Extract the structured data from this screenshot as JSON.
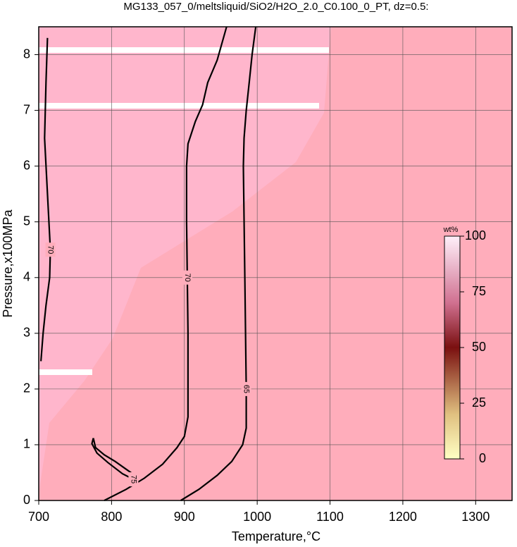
{
  "chart_data": {
    "type": "contour",
    "title": "MG133_057_0/meltsliquid/SiO2/H2O_2.0_C0.100_0_PT, dz=0.5:",
    "xlabel": "Temperature,°C",
    "ylabel": "Pressure,x100MPa",
    "xlim": [
      700,
      1350
    ],
    "ylim": [
      0,
      8.5
    ],
    "xticks": [
      700,
      800,
      900,
      1000,
      1100,
      1200,
      1300
    ],
    "yticks": [
      0,
      1,
      2,
      3,
      4,
      5,
      6,
      7,
      8
    ],
    "grid": true,
    "series": [
      {
        "name": "70",
        "color": "#000000",
        "x": [
          958,
          945,
          932,
          925,
          915,
          905,
          903,
          903,
          904,
          905,
          905,
          900,
          890,
          870,
          845,
          820,
          790
        ],
        "y": [
          8.5,
          7.9,
          7.5,
          7.1,
          6.8,
          6.4,
          6.0,
          5.0,
          4.0,
          3.0,
          1.5,
          1.15,
          0.95,
          0.65,
          0.4,
          0.2,
          0.0
        ]
      },
      {
        "name": "65",
        "color": "#000000",
        "x": [
          998,
          993,
          989,
          985,
          982,
          981,
          983,
          985,
          985,
          980,
          965,
          945,
          920,
          895
        ],
        "y": [
          8.5,
          8.0,
          7.5,
          7.0,
          6.5,
          6.0,
          4.0,
          2.0,
          1.3,
          1.0,
          0.7,
          0.45,
          0.2,
          0.0
        ]
      },
      {
        "name": "75",
        "color": "#000000",
        "x": [
          775,
          778,
          790,
          805,
          820,
          832,
          830,
          815,
          795,
          780,
          773,
          775
        ],
        "y": [
          1.12,
          0.95,
          0.82,
          0.7,
          0.56,
          0.45,
          0.38,
          0.48,
          0.68,
          0.85,
          1.02,
          1.12
        ]
      },
      {
        "name": "70",
        "color": "#000000",
        "x": [
          712,
          710,
          708,
          712,
          716,
          715,
          710,
          706,
          703
        ],
        "y": [
          8.3,
          7.5,
          6.5,
          5.5,
          4.5,
          4.0,
          3.5,
          3.0,
          2.5
        ]
      }
    ],
    "colorbar": {
      "label": "wt%",
      "lim": [
        0,
        100
      ],
      "ticks": [
        0,
        25,
        50,
        75,
        100
      ]
    }
  }
}
